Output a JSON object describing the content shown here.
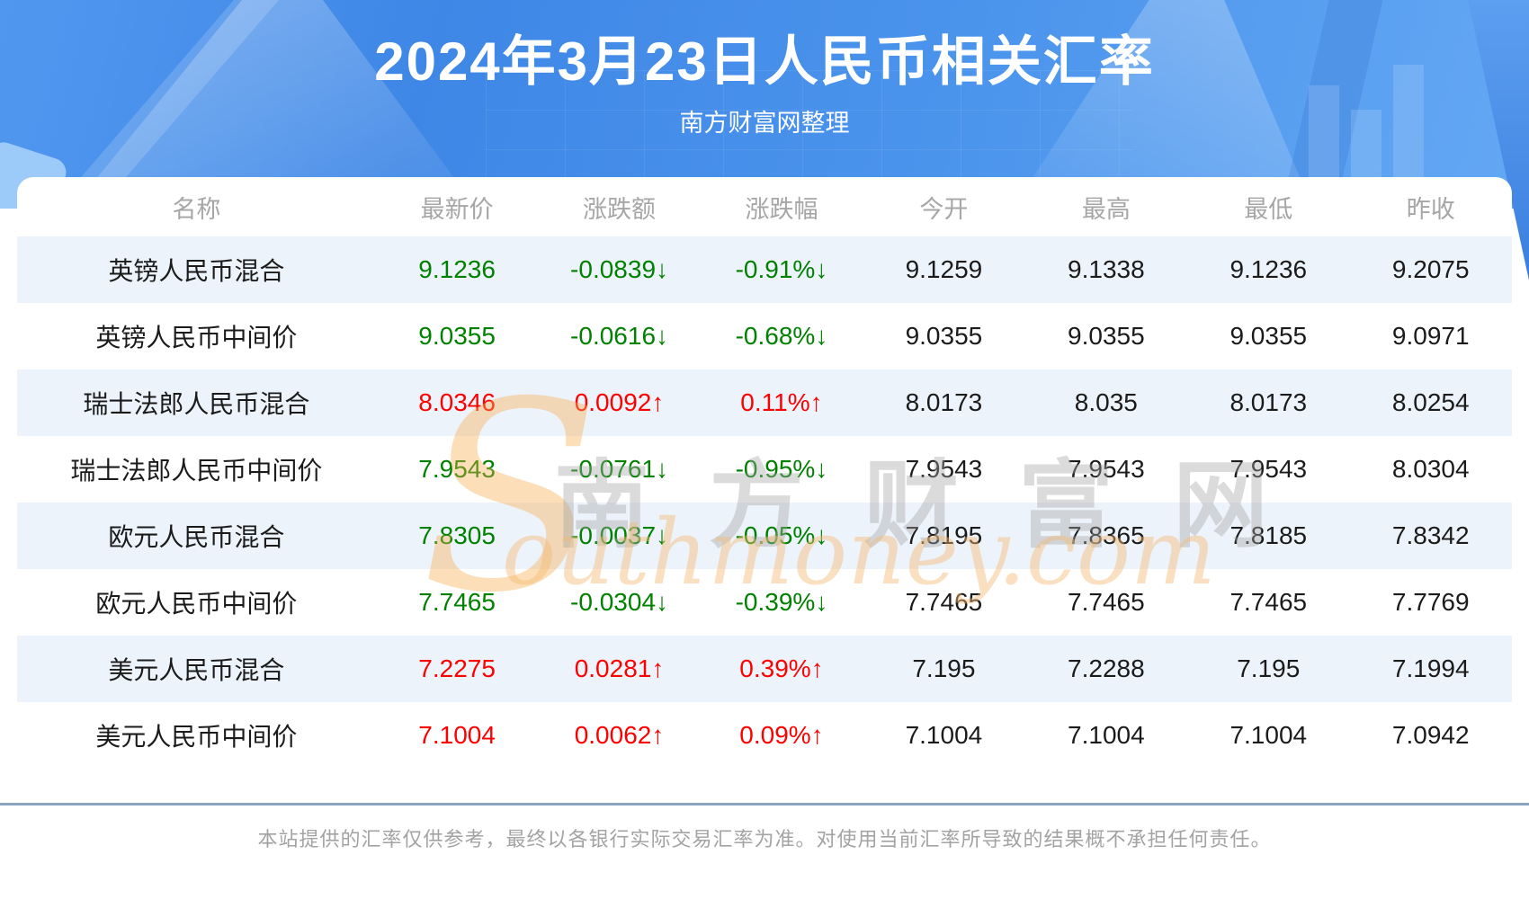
{
  "header": {
    "title": "2024年3月23日人民币相关汇率",
    "subtitle": "南方财富网整理"
  },
  "table": {
    "headers": [
      "名称",
      "最新价",
      "涨跌额",
      "涨跌幅",
      "今开",
      "最高",
      "最低",
      "昨收"
    ],
    "rows": [
      {
        "name": "英镑人民币混合",
        "direction": "down",
        "last": "9.1236",
        "change": "-0.0839↓",
        "pct": "-0.91%↓",
        "open": "9.1259",
        "high": "9.1338",
        "low": "9.1236",
        "prev": "9.2075"
      },
      {
        "name": "英镑人民币中间价",
        "direction": "down",
        "last": "9.0355",
        "change": "-0.0616↓",
        "pct": "-0.68%↓",
        "open": "9.0355",
        "high": "9.0355",
        "low": "9.0355",
        "prev": "9.0971"
      },
      {
        "name": "瑞士法郎人民币混合",
        "direction": "up",
        "last": "8.0346",
        "change": "0.0092↑",
        "pct": "0.11%↑",
        "open": "8.0173",
        "high": "8.035",
        "low": "8.0173",
        "prev": "8.0254"
      },
      {
        "name": "瑞士法郎人民币中间价",
        "direction": "down",
        "last": "7.9543",
        "change": "-0.0761↓",
        "pct": "-0.95%↓",
        "open": "7.9543",
        "high": "7.9543",
        "low": "7.9543",
        "prev": "8.0304"
      },
      {
        "name": "欧元人民币混合",
        "direction": "down",
        "last": "7.8305",
        "change": "-0.0037↓",
        "pct": "-0.05%↓",
        "open": "7.8195",
        "high": "7.8365",
        "low": "7.8185",
        "prev": "7.8342"
      },
      {
        "name": "欧元人民币中间价",
        "direction": "down",
        "last": "7.7465",
        "change": "-0.0304↓",
        "pct": "-0.39%↓",
        "open": "7.7465",
        "high": "7.7465",
        "low": "7.7465",
        "prev": "7.7769"
      },
      {
        "name": "美元人民币混合",
        "direction": "up",
        "last": "7.2275",
        "change": "0.0281↑",
        "pct": "0.39%↑",
        "open": "7.195",
        "high": "7.2288",
        "low": "7.195",
        "prev": "7.1994"
      },
      {
        "name": "美元人民币中间价",
        "direction": "up",
        "last": "7.1004",
        "change": "0.0062↑",
        "pct": "0.09%↑",
        "open": "7.1004",
        "high": "7.1004",
        "low": "7.1004",
        "prev": "7.0942"
      }
    ]
  },
  "watermark": {
    "s": "S",
    "cn": "南方财富网",
    "en": "outhmoney.com"
  },
  "footer": {
    "disclaimer": "本站提供的汇率仅供参考，最终以各银行实际交易汇率为准。对使用当前汇率所导致的结果概不承担任何责任。"
  },
  "colors": {
    "up_red": "#fd0101",
    "down_green": "#018101",
    "stripe_row": "#edf3fb",
    "hero_blue": "#4b94ec",
    "divider": "#8ba3c1",
    "header_text": "#a6a6a6"
  }
}
